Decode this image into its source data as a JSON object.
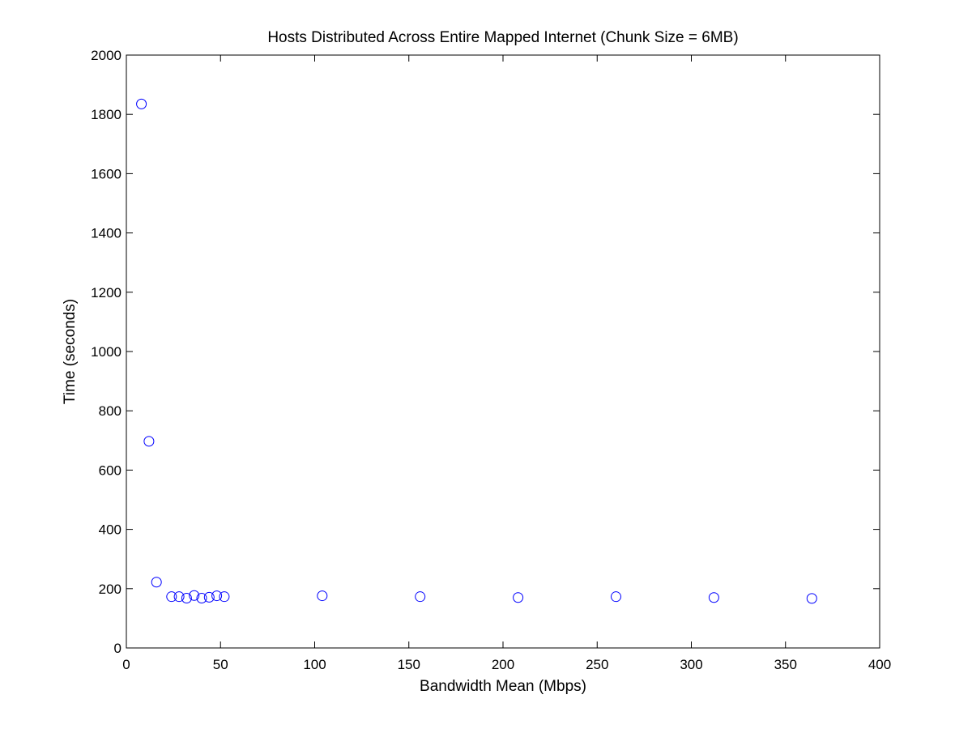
{
  "chart_data": {
    "type": "scatter",
    "title": "Hosts Distributed Across Entire Mapped Internet (Chunk Size = 6MB)",
    "xlabel": "Bandwidth Mean (Mbps)",
    "ylabel": "Time (seconds)",
    "xlim": [
      0,
      400
    ],
    "ylim": [
      0,
      2000
    ],
    "xticks": [
      0,
      50,
      100,
      150,
      200,
      250,
      300,
      350,
      400
    ],
    "yticks": [
      0,
      200,
      400,
      600,
      800,
      1000,
      1200,
      1400,
      1600,
      1800,
      2000
    ],
    "grid": false,
    "legend": "none",
    "marker": "open-circle",
    "colors": {
      "marker": "#0000ff",
      "axes": "#000000",
      "background": "#ffffff"
    },
    "series": [
      {
        "x": [
          8,
          12,
          16,
          24,
          28,
          32,
          36,
          40,
          44,
          48,
          52,
          104,
          156,
          208,
          260,
          312,
          364
        ],
        "y": [
          1835,
          697,
          222,
          173,
          173,
          168,
          177,
          168,
          171,
          176,
          173,
          176,
          173,
          170,
          173,
          170,
          167
        ]
      }
    ]
  }
}
